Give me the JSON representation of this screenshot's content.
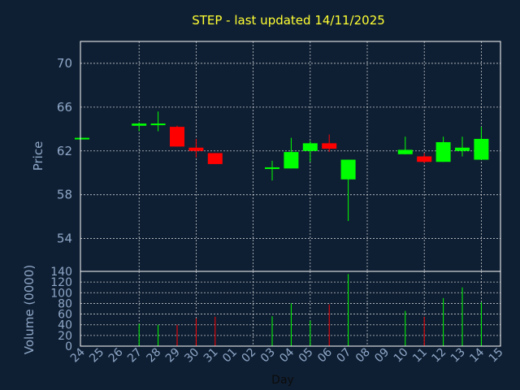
{
  "chart_data": {
    "type": "candlestick",
    "title": "STEP - last updated 14/11/2025",
    "ylabel": "Price",
    "volume_label": "Volume (0000)",
    "xlabel": "Day",
    "ylim": [
      51,
      72
    ],
    "yticks": [
      "70",
      "66",
      "62",
      "58",
      "54"
    ],
    "volume_ylim": [
      0,
      140
    ],
    "volume_yticks": [
      "140",
      "120",
      "100",
      "80",
      "60",
      "40",
      "20",
      "0"
    ],
    "x_ticks": [
      "24",
      "25",
      "26",
      "27",
      "28",
      "29",
      "30",
      "31",
      "01",
      "02",
      "03",
      "04",
      "05",
      "06",
      "07",
      "08",
      "09",
      "10",
      "11",
      "12",
      "13",
      "14",
      "15"
    ],
    "candles": [
      {
        "day": "24",
        "open": 63.2,
        "high": 63.2,
        "low": 63.2,
        "close": 63.2,
        "volume": 0
      },
      {
        "day": "27",
        "open": 64.3,
        "high": 64.6,
        "low": 63.8,
        "close": 64.5,
        "volume": 42
      },
      {
        "day": "28",
        "open": 64.5,
        "high": 65.6,
        "low": 63.8,
        "close": 64.5,
        "volume": 40
      },
      {
        "day": "29",
        "open": 64.2,
        "high": 64.3,
        "low": 62.4,
        "close": 62.4,
        "volume": 40
      },
      {
        "day": "30",
        "open": 62.3,
        "high": 63.1,
        "low": 61.4,
        "close": 62.0,
        "volume": 52
      },
      {
        "day": "31",
        "open": 61.8,
        "high": 61.8,
        "low": 60.8,
        "close": 60.8,
        "volume": 55
      },
      {
        "day": "03",
        "open": 60.5,
        "high": 61.1,
        "low": 59.3,
        "close": 60.5,
        "volume": 56
      },
      {
        "day": "04",
        "open": 60.4,
        "high": 63.2,
        "low": 60.4,
        "close": 61.9,
        "volume": 80
      },
      {
        "day": "05",
        "open": 62.0,
        "high": 62.9,
        "low": 61.0,
        "close": 62.7,
        "volume": 48
      },
      {
        "day": "06",
        "open": 62.7,
        "high": 63.5,
        "low": 61.9,
        "close": 62.2,
        "volume": 78
      },
      {
        "day": "07",
        "open": 59.4,
        "high": 61.2,
        "low": 55.6,
        "close": 61.2,
        "volume": 135
      },
      {
        "day": "10",
        "open": 61.7,
        "high": 63.3,
        "low": 61.7,
        "close": 62.1,
        "volume": 66
      },
      {
        "day": "11",
        "open": 61.5,
        "high": 61.8,
        "low": 60.9,
        "close": 61.0,
        "volume": 55
      },
      {
        "day": "12",
        "open": 61.0,
        "high": 63.3,
        "low": 61.0,
        "close": 62.8,
        "volume": 90
      },
      {
        "day": "13",
        "open": 62.0,
        "high": 63.3,
        "low": 61.5,
        "close": 62.3,
        "volume": 110
      },
      {
        "day": "14",
        "open": 61.2,
        "high": 64.2,
        "low": 61.2,
        "close": 63.1,
        "volume": 82
      }
    ],
    "up_color": "#00ff00",
    "down_color": "#ff0000",
    "grid": true
  }
}
